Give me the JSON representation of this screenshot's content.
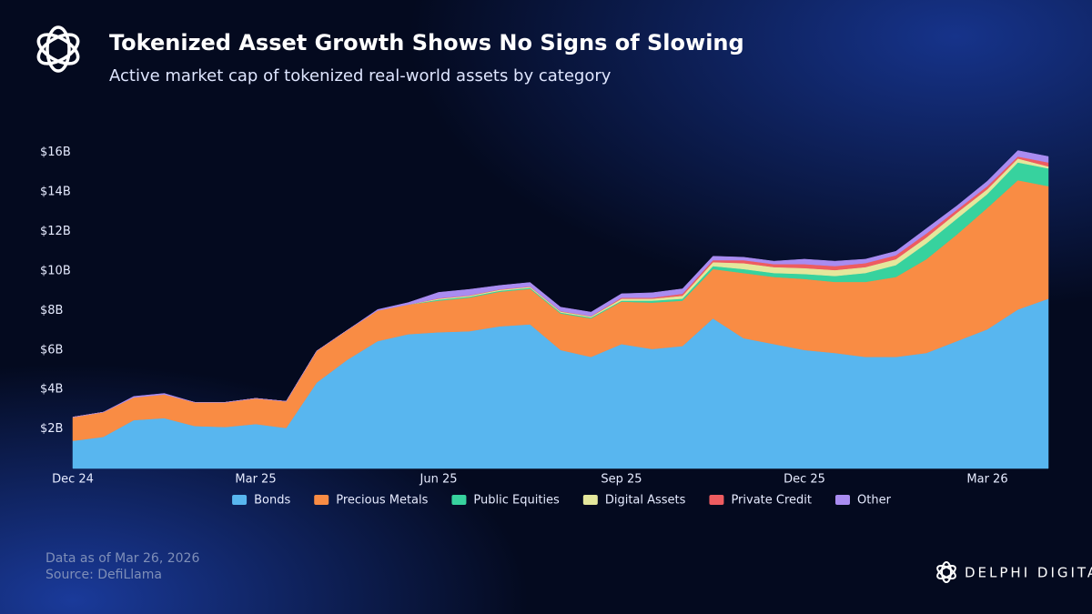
{
  "chart_data": {
    "type": "stacked_area",
    "title": "Tokenized Asset Growth Shows No Signs of Slowing",
    "subtitle": "Active market cap of tokenized real-world assets by category",
    "notes": [
      "Data as of Mar 26, 2026",
      "Source: DefiLlama"
    ],
    "brand": "DELPHI DIGITAL",
    "categories": [
      "Dec 24",
      null,
      null,
      null,
      null,
      null,
      "Mar 25",
      null,
      null,
      null,
      null,
      null,
      "Jun 25",
      null,
      null,
      null,
      null,
      null,
      "Sep 25",
      null,
      null,
      null,
      null,
      null,
      "Dec 25",
      null,
      null,
      null,
      null,
      null,
      "Mar 26",
      null,
      null
    ],
    "ylim": [
      0,
      17
    ],
    "yticks": [
      {
        "value": 2,
        "label": "$2B"
      },
      {
        "value": 4,
        "label": "$4B"
      },
      {
        "value": 6,
        "label": "$6B"
      },
      {
        "value": 8,
        "label": "$8B"
      },
      {
        "value": 10,
        "label": "$10B"
      },
      {
        "value": 12,
        "label": "$12B"
      },
      {
        "value": 14,
        "label": "$14B"
      },
      {
        "value": 16,
        "label": "$16B"
      }
    ],
    "grid": false,
    "series": [
      {
        "name": "Bonds",
        "color": "#58b6ef",
        "values": [
          1.4,
          1.6,
          2.45,
          2.55,
          2.15,
          2.1,
          2.25,
          2.05,
          4.35,
          5.5,
          6.45,
          6.8,
          6.9,
          6.95,
          7.2,
          7.3,
          6.0,
          5.65,
          6.3,
          6.05,
          6.2,
          7.6,
          6.6,
          6.3,
          6.0,
          5.85,
          5.65,
          5.65,
          5.85,
          6.45,
          7.05,
          8.05,
          8.6
        ]
      },
      {
        "name": "Precious Metals",
        "color": "#f98c44",
        "values": [
          1.2,
          1.25,
          1.15,
          1.2,
          1.2,
          1.25,
          1.3,
          1.35,
          1.6,
          1.5,
          1.55,
          1.5,
          1.6,
          1.7,
          1.75,
          1.8,
          1.85,
          1.95,
          2.15,
          2.35,
          2.3,
          2.5,
          3.3,
          3.4,
          3.6,
          3.6,
          3.8,
          4.05,
          4.75,
          5.4,
          6.15,
          6.55,
          5.7
        ]
      },
      {
        "name": "Public Equities",
        "color": "#37d29e",
        "values": [
          0,
          0,
          0,
          0,
          0,
          0,
          0,
          0,
          0,
          0,
          0,
          0,
          0.05,
          0.05,
          0.05,
          0.05,
          0.05,
          0.05,
          0.05,
          0.1,
          0.1,
          0.15,
          0.2,
          0.2,
          0.25,
          0.3,
          0.45,
          0.6,
          0.8,
          0.8,
          0.7,
          0.9,
          0.9
        ]
      },
      {
        "name": "Digital Assets",
        "color": "#e4e79c",
        "values": [
          0,
          0,
          0,
          0,
          0,
          0,
          0,
          0,
          0,
          0,
          0,
          0,
          0.05,
          0.05,
          0.05,
          0.05,
          0.05,
          0.05,
          0.1,
          0.1,
          0.15,
          0.2,
          0.3,
          0.3,
          0.3,
          0.3,
          0.3,
          0.3,
          0.3,
          0.3,
          0.25,
          0.2,
          0.1
        ]
      },
      {
        "name": "Private Credit",
        "color": "#ee5c60",
        "values": [
          0,
          0,
          0,
          0,
          0,
          0,
          0,
          0,
          0,
          0,
          0,
          0,
          0.02,
          0.02,
          0.02,
          0.02,
          0.02,
          0.02,
          0.05,
          0.05,
          0.1,
          0.1,
          0.15,
          0.15,
          0.2,
          0.2,
          0.2,
          0.2,
          0.2,
          0.15,
          0.15,
          0.1,
          0.2
        ]
      },
      {
        "name": "Other",
        "color": "#a98cf1",
        "values": [
          0,
          0,
          0.05,
          0.05,
          0,
          0,
          0,
          0,
          0,
          0,
          0.05,
          0.1,
          0.3,
          0.3,
          0.2,
          0.2,
          0.2,
          0.2,
          0.2,
          0.25,
          0.25,
          0.2,
          0.15,
          0.15,
          0.25,
          0.25,
          0.2,
          0.2,
          0.25,
          0.2,
          0.25,
          0.3,
          0.3
        ]
      }
    ]
  }
}
